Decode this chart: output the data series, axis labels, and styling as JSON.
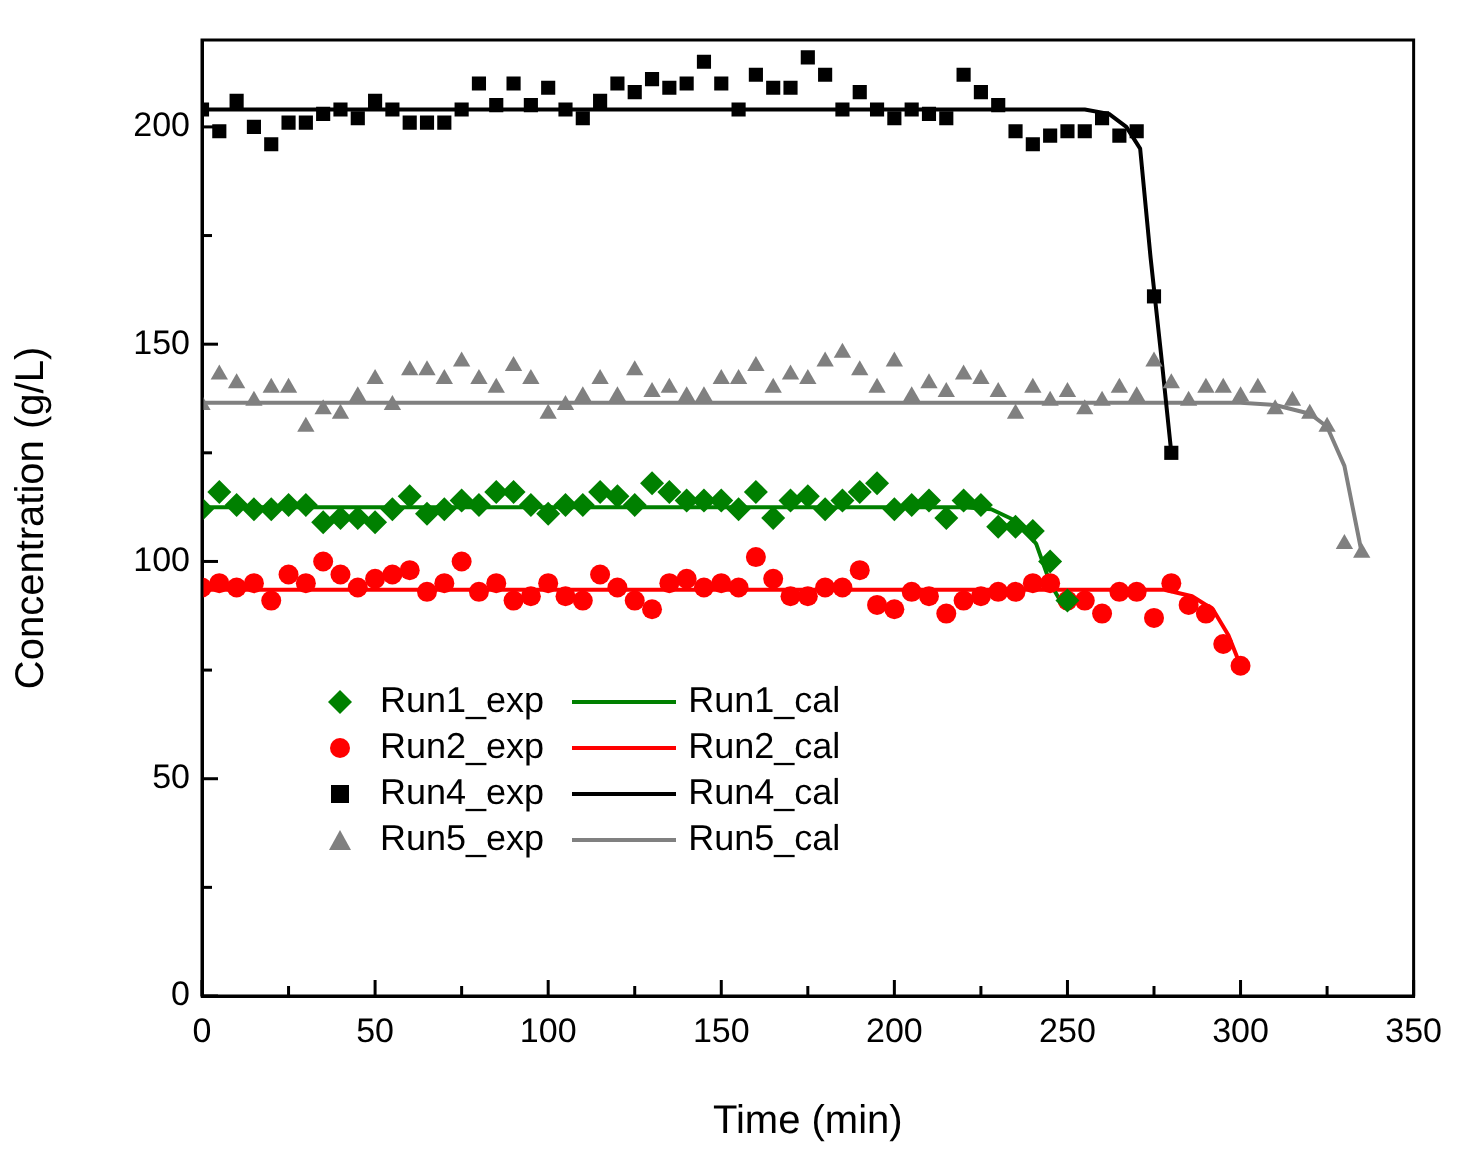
{
  "chart_data": {
    "type": "scatter",
    "xlabel": "Time (min)",
    "ylabel": "Concentration (g/L)",
    "xlim": [
      0,
      350
    ],
    "ylim": [
      0,
      220
    ],
    "xticks": [
      0,
      {
        "value": 25,
        "label": null
      },
      50,
      {
        "value": 75,
        "label": null
      },
      100,
      {
        "value": 125,
        "label": null
      },
      150,
      {
        "value": 175,
        "label": null
      },
      200,
      {
        "value": 225,
        "label": null
      },
      250,
      {
        "value": 275,
        "label": null
      },
      300,
      {
        "value": 325,
        "label": null
      },
      350
    ],
    "yticks": [
      0,
      {
        "value": 25,
        "label": null
      },
      50,
      {
        "value": 75,
        "label": null
      },
      100,
      {
        "value": 125,
        "label": null
      },
      150,
      {
        "value": 175,
        "label": null
      },
      200
    ],
    "grid": false,
    "legend": "bottom left",
    "series": [
      {
        "name": "Run1_exp",
        "type": "scatter",
        "marker": "diamond",
        "color": "#008000",
        "x": [
          0,
          5,
          10,
          15,
          20,
          25,
          30,
          35,
          40,
          45,
          50,
          55,
          60,
          65,
          70,
          75,
          80,
          85,
          90,
          95,
          100,
          105,
          110,
          115,
          120,
          125,
          130,
          135,
          140,
          145,
          150,
          155,
          160,
          165,
          170,
          175,
          180,
          185,
          190,
          195,
          200,
          205,
          210,
          215,
          220,
          225,
          230,
          235,
          240,
          245,
          250
        ],
        "values": [
          112,
          116,
          113,
          112,
          112,
          113,
          113,
          109,
          110,
          110,
          109,
          112,
          115,
          111,
          112,
          114,
          113,
          116,
          116,
          113,
          111,
          113,
          113,
          116,
          115,
          113,
          118,
          116,
          114,
          114,
          114,
          112,
          116,
          110,
          114,
          115,
          112,
          114,
          116,
          118,
          112,
          113,
          114,
          110,
          114,
          113,
          108,
          108,
          107,
          100,
          91
        ]
      },
      {
        "name": "Run1_cal",
        "type": "line",
        "marker": "none",
        "color": "#008000",
        "x": [
          0,
          220,
          228,
          236,
          241,
          245,
          249
        ],
        "values": [
          112.5,
          112.5,
          112,
          109,
          104,
          95,
          89.5
        ]
      },
      {
        "name": "Run2_exp",
        "type": "scatter",
        "marker": "circle",
        "color": "#ff0000",
        "x": [
          0,
          5,
          10,
          15,
          20,
          25,
          30,
          35,
          40,
          45,
          50,
          55,
          60,
          65,
          70,
          75,
          80,
          85,
          90,
          95,
          100,
          105,
          110,
          115,
          120,
          125,
          130,
          135,
          140,
          145,
          150,
          155,
          160,
          165,
          170,
          175,
          180,
          185,
          190,
          195,
          200,
          205,
          210,
          215,
          220,
          225,
          230,
          235,
          240,
          245,
          250,
          255,
          260,
          265,
          270,
          275,
          280,
          285,
          290,
          295,
          300
        ],
        "values": [
          94,
          95,
          94,
          95,
          91,
          97,
          95,
          100,
          97,
          94,
          96,
          97,
          98,
          93,
          95,
          100,
          93,
          95,
          91,
          92,
          95,
          92,
          91,
          97,
          94,
          91,
          89,
          95,
          96,
          94,
          95,
          94,
          101,
          96,
          92,
          92,
          94,
          94,
          98,
          90,
          89,
          93,
          92,
          88,
          91,
          92,
          93,
          93,
          95,
          95,
          91,
          91,
          88,
          93,
          93,
          87,
          95,
          90,
          88,
          81,
          76
        ]
      },
      {
        "name": "Run2_cal",
        "type": "line",
        "marker": "none",
        "color": "#ff0000",
        "x": [
          0,
          278,
          286,
          292,
          296.5,
          300
        ],
        "values": [
          93.5,
          93.5,
          92,
          89,
          83,
          76
        ]
      },
      {
        "name": "Run4_exp",
        "type": "scatter",
        "marker": "square",
        "color": "#000000",
        "x": [
          0,
          5,
          10,
          15,
          20,
          25,
          30,
          35,
          40,
          45,
          50,
          55,
          60,
          65,
          70,
          75,
          80,
          85,
          90,
          95,
          100,
          105,
          110,
          115,
          120,
          125,
          130,
          135,
          140,
          145,
          150,
          155,
          160,
          165,
          170,
          175,
          180,
          185,
          190,
          195,
          200,
          205,
          210,
          215,
          220,
          225,
          230,
          235,
          240,
          245,
          250,
          255,
          260,
          265,
          270,
          275,
          280
        ],
        "values": [
          204,
          199,
          206,
          200,
          196,
          201,
          201,
          203,
          204,
          202,
          206,
          204,
          201,
          201,
          201,
          204,
          210,
          205,
          210,
          205,
          209,
          204,
          202,
          206,
          210,
          208,
          211,
          209,
          210,
          215,
          210,
          204,
          212,
          209,
          209,
          216,
          212,
          204,
          208,
          204,
          202,
          204,
          203,
          202,
          212,
          208,
          205,
          199,
          196,
          198,
          199,
          199,
          202,
          198,
          199,
          161,
          125
        ]
      },
      {
        "name": "Run4_cal",
        "type": "line",
        "marker": "none",
        "color": "#000000",
        "x": [
          0,
          255,
          262,
          267,
          271,
          274,
          277,
          280
        ],
        "values": [
          204,
          204,
          203,
          200,
          195,
          170,
          148,
          125
        ]
      },
      {
        "name": "Run5_exp",
        "type": "scatter",
        "marker": "triangle",
        "color": "#808080",
        "x": [
          0,
          5,
          10,
          15,
          20,
          25,
          30,
          35,
          40,
          45,
          50,
          55,
          60,
          65,
          70,
          75,
          80,
          85,
          90,
          95,
          100,
          105,
          110,
          115,
          120,
          125,
          130,
          135,
          140,
          145,
          150,
          155,
          160,
          165,
          170,
          175,
          180,
          185,
          190,
          195,
          200,
          205,
          210,
          215,
          220,
          225,
          230,
          235,
          240,
          245,
          250,
          255,
          260,
          265,
          270,
          275,
          280,
          285,
          290,
          295,
          300,
          305,
          310,
          315,
          320,
          325,
          330,
          335
        ],
        "values": [
          136,
          143,
          141,
          137,
          140,
          140,
          131,
          135,
          134,
          138,
          142,
          136,
          144,
          144,
          142,
          146,
          142,
          140,
          145,
          142,
          134,
          136,
          138,
          142,
          138,
          144,
          139,
          140,
          138,
          138,
          142,
          142,
          145,
          140,
          143,
          142,
          146,
          148,
          144,
          140,
          146,
          138,
          141,
          139,
          143,
          142,
          139,
          134,
          140,
          137,
          139,
          135,
          137,
          140,
          138,
          146,
          141,
          137,
          140,
          140,
          138,
          140,
          135,
          137,
          134,
          131,
          104,
          102
        ]
      },
      {
        "name": "Run5_cal",
        "type": "line",
        "marker": "none",
        "color": "#808080",
        "x": [
          0,
          300,
          310,
          320,
          325,
          330,
          333,
          335
        ],
        "values": [
          136.5,
          136.5,
          136,
          134,
          131,
          122,
          110,
          102
        ]
      }
    ]
  }
}
